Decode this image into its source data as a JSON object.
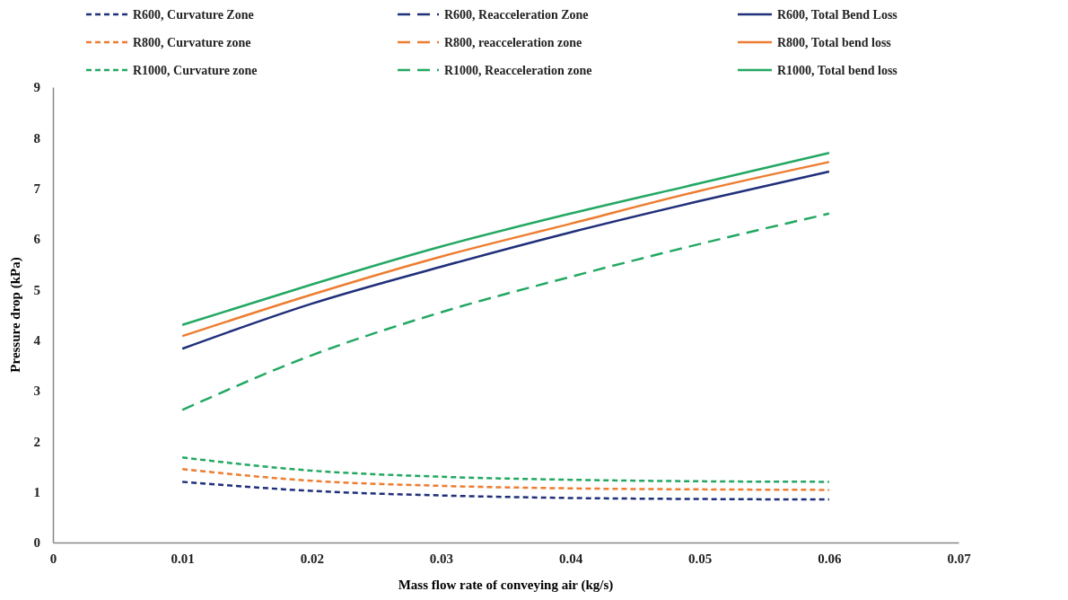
{
  "chart_data": {
    "type": "line",
    "xlabel": "Mass flow rate of conveying air (kg/s)",
    "ylabel": "Pressure drop (kPa)",
    "x": [
      0.01,
      0.02,
      0.03,
      0.04,
      0.05,
      0.06
    ],
    "xlim": [
      0,
      0.07
    ],
    "xticks": [
      0,
      0.01,
      0.02,
      0.03,
      0.04,
      0.05,
      0.06,
      0.07
    ],
    "ylim": [
      0,
      9
    ],
    "yticks": [
      0,
      1,
      2,
      3,
      4,
      5,
      6,
      7,
      8,
      9
    ],
    "grid": false,
    "legend": "top",
    "marker": "none",
    "series": [
      {
        "name": "R600, Curvature Zone",
        "color": "#1f2f7a",
        "line_style": "dotted",
        "values": [
          1.2,
          1.02,
          0.93,
          0.88,
          0.86,
          0.85
        ]
      },
      {
        "name": "R600, Reacceleration Zone",
        "color": "#1f2f7a",
        "line_style": "dashed",
        "values": [
          null,
          null,
          null,
          null,
          null,
          null
        ]
      },
      {
        "name": "R600, Total Bend Loss",
        "color": "#1f2f7a",
        "line_style": "solid",
        "values": [
          3.83,
          4.72,
          5.45,
          6.13,
          6.75,
          7.33
        ]
      },
      {
        "name": "R800, Curvature zone",
        "color": "#ed7d31",
        "line_style": "dotted",
        "values": [
          1.45,
          1.22,
          1.12,
          1.07,
          1.05,
          1.04
        ]
      },
      {
        "name": "R800, reacceleration zone",
        "color": "#ed7d31",
        "line_style": "dashed",
        "values": [
          null,
          null,
          null,
          null,
          null,
          null
        ]
      },
      {
        "name": "R800, Total bend loss",
        "color": "#ed7d31",
        "line_style": "solid",
        "values": [
          4.08,
          4.9,
          5.65,
          6.3,
          6.95,
          7.52
        ]
      },
      {
        "name": "R1000, Curvature zone",
        "color": "#23a862",
        "line_style": "dotted",
        "values": [
          1.68,
          1.42,
          1.3,
          1.24,
          1.21,
          1.2
        ]
      },
      {
        "name": "R1000, Reacceleration zone",
        "color": "#23a862",
        "line_style": "dashed",
        "values": [
          2.62,
          3.7,
          4.55,
          5.25,
          5.9,
          6.5
        ]
      },
      {
        "name": "R1000, Total bend loss",
        "color": "#23a862",
        "line_style": "solid",
        "values": [
          4.3,
          5.1,
          5.85,
          6.5,
          7.1,
          7.7
        ]
      }
    ]
  }
}
